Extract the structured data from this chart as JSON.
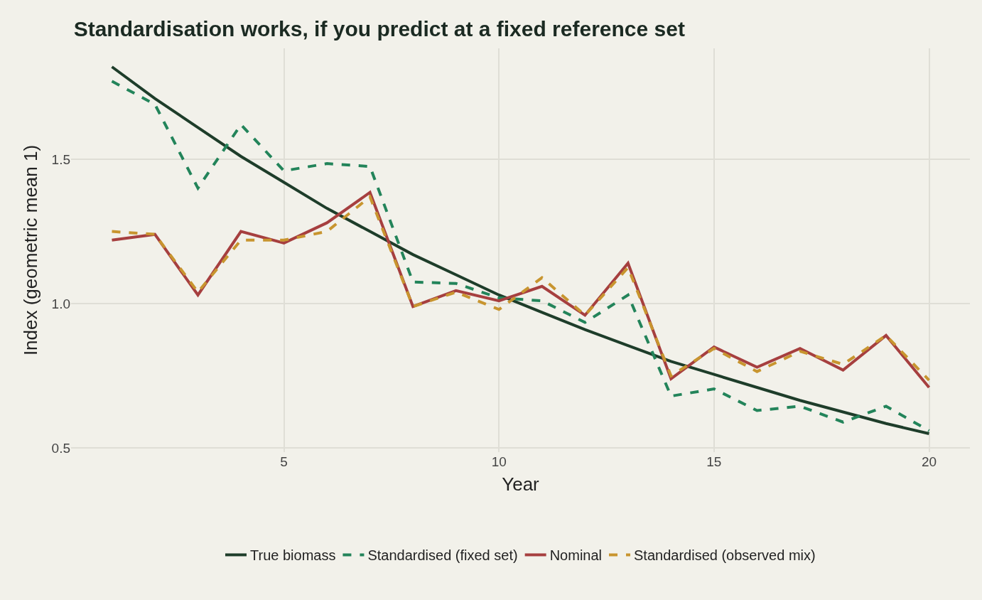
{
  "chart_data": {
    "type": "line",
    "title": "Standardisation works, if you predict at a fixed reference set",
    "xlabel": "Year",
    "ylabel": "Index (geometric mean 1)",
    "x": [
      1,
      2,
      3,
      4,
      5,
      6,
      7,
      8,
      9,
      10,
      11,
      12,
      13,
      14,
      15,
      16,
      17,
      18,
      19,
      20
    ],
    "series": [
      {
        "name": "True biomass",
        "color": "#1e3d2a",
        "line_style": "solid",
        "values": [
          1.82,
          1.71,
          1.61,
          1.51,
          1.42,
          1.33,
          1.25,
          1.17,
          1.1,
          1.03,
          0.97,
          0.91,
          0.855,
          0.8,
          0.755,
          0.71,
          0.665,
          0.625,
          0.585,
          0.55
        ]
      },
      {
        "name": "Standardised (fixed set)",
        "color": "#23845a",
        "line_style": "dashed",
        "values": [
          1.77,
          1.69,
          1.4,
          1.62,
          1.46,
          1.485,
          1.475,
          1.075,
          1.07,
          1.02,
          1.01,
          0.935,
          1.03,
          0.68,
          0.705,
          0.63,
          0.645,
          0.59,
          0.645,
          0.56
        ]
      },
      {
        "name": "Nominal",
        "color": "#a63f3f",
        "line_style": "solid",
        "values": [
          1.22,
          1.24,
          1.03,
          1.25,
          1.21,
          1.28,
          1.385,
          0.99,
          1.045,
          1.01,
          1.06,
          0.96,
          1.14,
          0.74,
          0.85,
          0.78,
          0.845,
          0.77,
          0.89,
          0.71
        ]
      },
      {
        "name": "Standardised (observed mix)",
        "color": "#c8952f",
        "line_style": "dashed",
        "values": [
          1.25,
          1.24,
          1.04,
          1.22,
          1.22,
          1.25,
          1.37,
          0.99,
          1.04,
          0.98,
          1.09,
          0.96,
          1.125,
          0.75,
          0.845,
          0.765,
          0.835,
          0.79,
          0.89,
          0.735
        ]
      }
    ],
    "xlim": [
      0.05,
      20.95
    ],
    "ylim": [
      0.486,
      1.884
    ],
    "xticks": [
      5,
      10,
      15,
      20
    ],
    "yticks": [
      0.5,
      {
        "value": 1.0,
        "label": "1.0"
      },
      1.5
    ],
    "grid": true,
    "legend": "bottom",
    "marker": "none"
  }
}
